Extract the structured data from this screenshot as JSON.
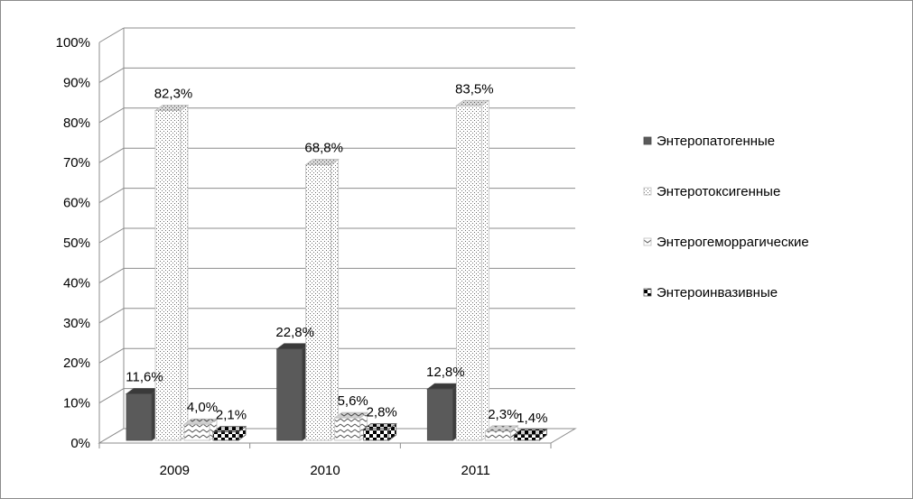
{
  "chart_data": {
    "type": "bar",
    "categories": [
      "2009",
      "2010",
      "2011"
    ],
    "series": [
      {
        "name": "Энтеропатогенные",
        "values": [
          11.6,
          22.8,
          12.8
        ],
        "labels": [
          "11,6%",
          "22,8%",
          "12,8%"
        ]
      },
      {
        "name": "Энтеротоксигенные",
        "values": [
          82.3,
          68.8,
          83.5
        ],
        "labels": [
          "82,3%",
          "68,8%",
          "83,5%"
        ]
      },
      {
        "name": "Энтерогеморрагические",
        "values": [
          4.0,
          5.6,
          2.3
        ],
        "labels": [
          "4,0%",
          "5,6%",
          "2,3%"
        ]
      },
      {
        "name": "Энтероинвазивные",
        "values": [
          2.1,
          2.8,
          1.4
        ],
        "labels": [
          "2,1%",
          "2,8%",
          "1,4%"
        ]
      }
    ],
    "y_ticks": [
      "0%",
      "10%",
      "20%",
      "30%",
      "40%",
      "50%",
      "60%",
      "70%",
      "80%",
      "90%",
      "100%"
    ],
    "ylim": [
      0,
      100
    ],
    "grid": true,
    "legend_position": "right",
    "three_d": true
  }
}
